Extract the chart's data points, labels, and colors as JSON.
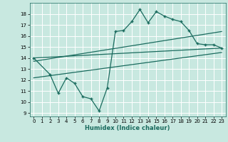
{
  "title": "",
  "xlabel": "Humidex (Indice chaleur)",
  "bg_color": "#c8e8e0",
  "line_color": "#1a6b5e",
  "xlim": [
    -0.5,
    23.5
  ],
  "ylim": [
    8.7,
    19.0
  ],
  "yticks": [
    9,
    10,
    11,
    12,
    13,
    14,
    15,
    16,
    17,
    18
  ],
  "xticks": [
    0,
    1,
    2,
    3,
    4,
    5,
    6,
    7,
    8,
    9,
    10,
    11,
    12,
    13,
    14,
    15,
    16,
    17,
    18,
    19,
    20,
    21,
    22,
    23
  ],
  "zigzag_x": [
    0,
    2,
    3,
    4,
    5,
    6,
    7,
    8,
    9,
    10,
    11,
    12,
    13,
    14,
    15,
    16,
    17,
    18,
    19,
    20,
    21,
    22,
    23
  ],
  "zigzag_y": [
    14.0,
    12.5,
    10.8,
    12.2,
    11.7,
    10.5,
    10.3,
    9.2,
    11.3,
    16.4,
    16.5,
    17.3,
    18.4,
    17.2,
    18.2,
    17.8,
    17.5,
    17.3,
    16.5,
    15.3,
    15.2,
    15.2,
    14.9
  ],
  "line1_x": [
    0,
    23
  ],
  "line1_y": [
    14.0,
    14.9
  ],
  "line2_x": [
    0,
    23
  ],
  "line2_y": [
    13.7,
    16.4
  ],
  "line3_x": [
    0,
    23
  ],
  "line3_y": [
    12.2,
    14.5
  ]
}
